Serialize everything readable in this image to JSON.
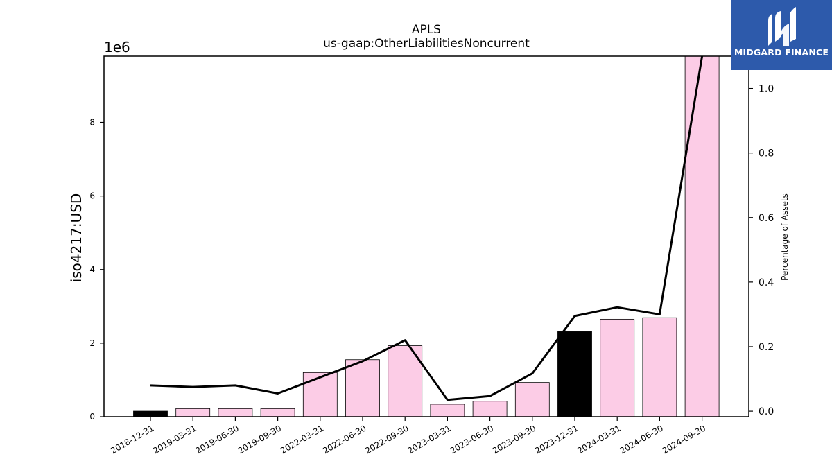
{
  "chart_data": {
    "type": "bar",
    "title": "APLS",
    "subtitle": "us-gaap:OtherLiabilitiesNoncurrent",
    "ylabel": "iso4217:USD",
    "y_offset_label": "1e6",
    "y2label": "Percentage of Assets",
    "categories": [
      "2018-12-31",
      "2019-03-31",
      "2019-06-30",
      "2019-09-30",
      "2022-03-31",
      "2022-06-30",
      "2022-09-30",
      "2023-03-31",
      "2023-06-30",
      "2023-09-30",
      "2023-12-31",
      "2024-03-31",
      "2024-06-30",
      "2024-09-30"
    ],
    "values": [
      150000,
      220000,
      220000,
      220000,
      1200000,
      1550000,
      1930000,
      340000,
      420000,
      930000,
      2310000,
      2650000,
      2690000,
      9800000
    ],
    "bar_colors": [
      "#000000",
      "#fccce6",
      "#fccce6",
      "#fccce6",
      "#fccce6",
      "#fccce6",
      "#fccce6",
      "#fccce6",
      "#fccce6",
      "#fccce6",
      "#000000",
      "#fccce6",
      "#fccce6",
      "#fccce6"
    ],
    "line_values": [
      0.08,
      0.075,
      0.08,
      0.055,
      0.105,
      0.155,
      0.22,
      0.035,
      0.047,
      0.117,
      0.295,
      0.322,
      0.3,
      1.1
    ],
    "line_color": "#000000",
    "ylim": [
      0,
      9800000
    ],
    "y2lim": [
      -0.017,
      1.1
    ],
    "yticks": [
      0,
      2000000,
      4000000,
      6000000,
      8000000
    ],
    "ytick_labels": [
      "0",
      "2",
      "4",
      "6",
      "8"
    ],
    "y2ticks": [
      0.0,
      0.2,
      0.4,
      0.6,
      0.8,
      1.0
    ],
    "y2tick_labels": [
      "0.0",
      "0.2",
      "0.4",
      "0.6",
      "0.8",
      "1.0"
    ],
    "grid": false,
    "legend": "none"
  },
  "logo": {
    "text": "MIDGARD FINANCE",
    "bg_color": "#2d5aab"
  }
}
